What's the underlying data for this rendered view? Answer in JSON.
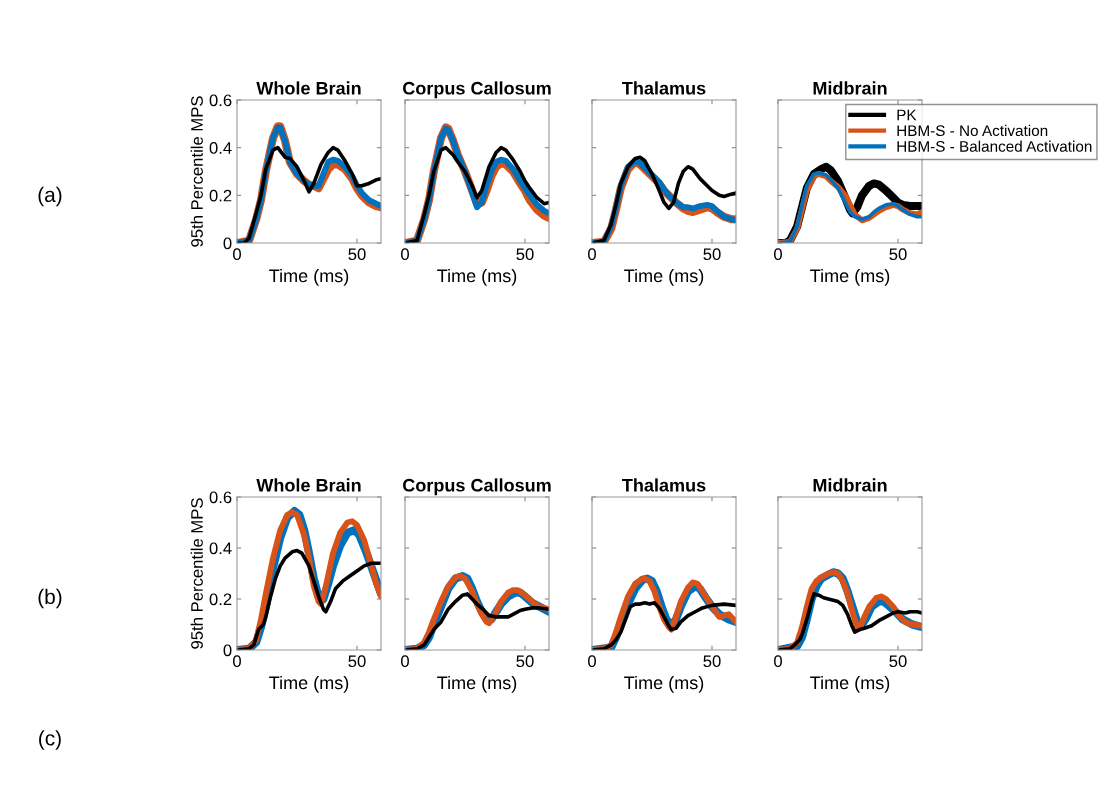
{
  "chart_data": [
    {
      "type": "line",
      "title": "Whole Brain",
      "xlabel": "Time (ms)",
      "ylabel": "95th Percentile MPS",
      "annotations": [
        "(a)"
      ],
      "xlim": [
        0,
        60
      ],
      "xticks": [
        0,
        50
      ],
      "ylim": [
        0,
        0.6
      ],
      "yticks": [
        0,
        0.2,
        0.4,
        0.6
      ],
      "grid": false,
      "legend": false,
      "marker": "none",
      "line_style": "solid",
      "series": [
        {
          "color": "#d95319",
          "x": [
            0,
            5,
            8,
            10,
            12,
            15,
            17,
            18,
            20,
            22,
            25,
            28,
            30,
            32,
            34,
            36,
            38,
            40,
            42,
            45,
            48,
            50,
            52,
            55,
            58,
            60
          ],
          "values": [
            0,
            0.01,
            0.1,
            0.18,
            0.3,
            0.44,
            0.49,
            0.49,
            0.43,
            0.34,
            0.29,
            0.26,
            0.245,
            0.24,
            0.23,
            0.27,
            0.31,
            0.33,
            0.33,
            0.31,
            0.27,
            0.23,
            0.2,
            0.17,
            0.155,
            0.15
          ]
        },
        {
          "color": "#0072bd",
          "x": [
            0,
            5,
            8,
            10,
            12,
            15,
            17,
            18,
            20,
            22,
            25,
            28,
            30,
            32,
            34,
            36,
            38,
            40,
            42,
            45,
            48,
            50,
            52,
            55,
            58,
            60
          ],
          "values": [
            0,
            0.01,
            0.1,
            0.18,
            0.3,
            0.44,
            0.485,
            0.485,
            0.43,
            0.34,
            0.29,
            0.26,
            0.245,
            0.24,
            0.24,
            0.29,
            0.34,
            0.35,
            0.345,
            0.32,
            0.28,
            0.24,
            0.21,
            0.18,
            0.165,
            0.155
          ]
        },
        {
          "color": "#000000",
          "x": [
            0,
            3,
            5,
            8,
            10,
            12,
            15,
            17,
            20,
            22,
            25,
            28,
            30,
            32,
            35,
            38,
            40,
            42,
            45,
            48,
            50,
            52,
            55,
            58,
            60
          ],
          "values": [
            0,
            0,
            0.02,
            0.126,
            0.2,
            0.31,
            0.39,
            0.4,
            0.36,
            0.355,
            0.32,
            0.26,
            0.215,
            0.25,
            0.33,
            0.38,
            0.4,
            0.39,
            0.345,
            0.29,
            0.24,
            0.24,
            0.25,
            0.265,
            0.27
          ]
        }
      ]
    },
    {
      "type": "line",
      "title": "Corpus Callosum",
      "xlabel": "Time (ms)",
      "tick_labels": "x",
      "xlim": [
        0,
        60
      ],
      "xticks": [
        0,
        50
      ],
      "ylim": [
        0,
        0.6
      ],
      "yticks": [
        0,
        0.2,
        0.4,
        0.6
      ],
      "grid": false,
      "legend": false,
      "marker": "none",
      "line_style": "solid",
      "series": [
        {
          "color": "#d95319",
          "x": [
            0,
            5,
            8,
            10,
            12,
            15,
            17,
            18,
            20,
            22,
            25,
            28,
            30,
            32,
            34,
            36,
            38,
            40,
            42,
            45,
            48,
            50,
            52,
            55,
            58,
            60
          ],
          "values": [
            0,
            0.01,
            0.1,
            0.18,
            0.3,
            0.44,
            0.485,
            0.48,
            0.43,
            0.37,
            0.3,
            0.22,
            0.165,
            0.17,
            0.22,
            0.28,
            0.32,
            0.335,
            0.33,
            0.3,
            0.25,
            0.22,
            0.18,
            0.14,
            0.115,
            0.105
          ]
        },
        {
          "color": "#0072bd",
          "x": [
            0,
            5,
            8,
            10,
            12,
            15,
            17,
            18,
            20,
            22,
            25,
            28,
            30,
            32,
            34,
            36,
            38,
            40,
            42,
            45,
            48,
            50,
            52,
            55,
            58,
            60
          ],
          "values": [
            0,
            0.01,
            0.1,
            0.18,
            0.3,
            0.44,
            0.48,
            0.475,
            0.43,
            0.37,
            0.3,
            0.21,
            0.15,
            0.17,
            0.24,
            0.3,
            0.34,
            0.35,
            0.345,
            0.31,
            0.26,
            0.23,
            0.2,
            0.16,
            0.135,
            0.125
          ]
        },
        {
          "color": "#000000",
          "x": [
            0,
            5,
            8,
            10,
            12,
            15,
            17,
            20,
            22,
            25,
            28,
            30,
            32,
            35,
            38,
            40,
            42,
            45,
            48,
            50,
            52,
            55,
            58,
            60
          ],
          "values": [
            0,
            0.01,
            0.12,
            0.2,
            0.3,
            0.39,
            0.4,
            0.37,
            0.34,
            0.3,
            0.24,
            0.19,
            0.22,
            0.32,
            0.38,
            0.4,
            0.39,
            0.35,
            0.3,
            0.26,
            0.23,
            0.19,
            0.165,
            0.17
          ]
        }
      ]
    },
    {
      "type": "line",
      "title": "Thalamus",
      "xlabel": "Time (ms)",
      "tick_labels": "x",
      "xlim": [
        0,
        60
      ],
      "xticks": [
        0,
        50
      ],
      "ylim": [
        0,
        0.6
      ],
      "yticks": [
        0,
        0.2,
        0.4,
        0.6
      ],
      "grid": false,
      "legend": false,
      "marker": "none",
      "line_style": "solid",
      "series": [
        {
          "color": "#d95319",
          "x": [
            0,
            5,
            8,
            10,
            12,
            15,
            18,
            20,
            22,
            25,
            28,
            30,
            32,
            35,
            38,
            40,
            42,
            45,
            48,
            50,
            52,
            55,
            58,
            60
          ],
          "values": [
            0,
            0.005,
            0.06,
            0.14,
            0.23,
            0.31,
            0.34,
            0.33,
            0.31,
            0.28,
            0.25,
            0.22,
            0.2,
            0.17,
            0.145,
            0.135,
            0.13,
            0.14,
            0.15,
            0.145,
            0.13,
            0.11,
            0.1,
            0.1
          ]
        },
        {
          "color": "#0072bd",
          "x": [
            0,
            5,
            8,
            10,
            12,
            15,
            18,
            20,
            22,
            25,
            28,
            30,
            32,
            35,
            38,
            40,
            42,
            45,
            48,
            50,
            52,
            55,
            58,
            60
          ],
          "values": [
            0,
            0.005,
            0.07,
            0.15,
            0.24,
            0.32,
            0.345,
            0.335,
            0.315,
            0.285,
            0.255,
            0.225,
            0.2,
            0.17,
            0.15,
            0.15,
            0.145,
            0.155,
            0.16,
            0.155,
            0.135,
            0.11,
            0.1,
            0.095
          ]
        },
        {
          "color": "#000000",
          "x": [
            0,
            5,
            8,
            10,
            12,
            15,
            18,
            20,
            22,
            25,
            28,
            30,
            32,
            34,
            36,
            38,
            40,
            42,
            45,
            48,
            50,
            53,
            55,
            58,
            60
          ],
          "values": [
            0,
            0.01,
            0.08,
            0.16,
            0.25,
            0.32,
            0.355,
            0.36,
            0.345,
            0.29,
            0.22,
            0.17,
            0.145,
            0.17,
            0.25,
            0.3,
            0.32,
            0.31,
            0.27,
            0.24,
            0.22,
            0.2,
            0.195,
            0.205,
            0.21
          ]
        }
      ]
    },
    {
      "type": "line",
      "title": "Midbrain",
      "xlabel": "Time (ms)",
      "tick_labels": "x",
      "xlim": [
        0,
        60
      ],
      "xticks": [
        0,
        50
      ],
      "ylim": [
        0,
        0.6
      ],
      "yticks": [
        0,
        0.2,
        0.4,
        0.6
      ],
      "grid": false,
      "legend": "top right",
      "marker": "none",
      "line_style": "solid",
      "series": [
        {
          "name": "PK",
          "color": "#000000",
          "x": [
            0,
            3,
            5,
            8,
            10,
            12,
            15,
            18,
            20,
            22,
            25,
            28,
            30,
            31,
            33,
            35,
            38,
            40,
            42,
            45,
            48,
            50,
            52,
            55,
            60
          ],
          "values": [
            0,
            0,
            0.01,
            0.07,
            0.15,
            0.23,
            0.29,
            0.31,
            0.32,
            0.305,
            0.26,
            0.19,
            0.14,
            0.125,
            0.15,
            0.2,
            0.24,
            0.25,
            0.245,
            0.22,
            0.19,
            0.17,
            0.16,
            0.155,
            0.155
          ]
        },
        {
          "name": "HBM-S - No Activation",
          "color": "#d95319",
          "x": [
            0,
            5,
            8,
            10,
            12,
            15,
            17,
            20,
            22,
            25,
            28,
            30,
            32,
            35,
            38,
            40,
            42,
            45,
            48,
            50,
            52,
            55,
            58,
            60
          ],
          "values": [
            0,
            0.005,
            0.06,
            0.14,
            0.22,
            0.28,
            0.29,
            0.28,
            0.26,
            0.235,
            0.2,
            0.16,
            0.12,
            0.095,
            0.105,
            0.12,
            0.135,
            0.15,
            0.16,
            0.155,
            0.14,
            0.125,
            0.12,
            0.13
          ]
        },
        {
          "name": "HBM-S - Balanced Activation",
          "color": "#0072bd",
          "x": [
            0,
            5,
            8,
            10,
            12,
            15,
            17,
            20,
            22,
            25,
            28,
            30,
            32,
            35,
            38,
            40,
            42,
            45,
            48,
            50,
            52,
            55,
            58,
            60
          ],
          "values": [
            0,
            0.005,
            0.07,
            0.16,
            0.24,
            0.29,
            0.295,
            0.285,
            0.265,
            0.23,
            0.17,
            0.13,
            0.11,
            0.1,
            0.11,
            0.13,
            0.145,
            0.16,
            0.165,
            0.155,
            0.14,
            0.12,
            0.11,
            0.11
          ]
        }
      ]
    },
    {
      "type": "line",
      "title": "Whole Brain",
      "xlabel": "Time (ms)",
      "ylabel": "95th Percentile MPS",
      "annotations": [
        "(b)",
        "(c)"
      ],
      "xlim": [
        0,
        60
      ],
      "xticks": [
        0,
        50
      ],
      "ylim": [
        0,
        0.6
      ],
      "yticks": [
        0,
        0.2,
        0.4,
        0.6
      ],
      "grid": false,
      "legend": false,
      "marker": "none",
      "line_style": "solid",
      "series": [
        {
          "color": "#0072bd",
          "x": [
            0,
            5,
            8,
            10,
            12,
            15,
            18,
            21,
            24,
            26,
            28,
            30,
            32,
            34,
            36,
            38,
            40,
            43,
            46,
            49,
            51,
            54,
            57,
            60
          ],
          "values": [
            0,
            0.005,
            0.03,
            0.09,
            0.17,
            0.32,
            0.44,
            0.52,
            0.545,
            0.53,
            0.47,
            0.38,
            0.28,
            0.21,
            0.2,
            0.26,
            0.33,
            0.41,
            0.46,
            0.47,
            0.45,
            0.38,
            0.3,
            0.22
          ]
        },
        {
          "color": "#d95319",
          "x": [
            0,
            5,
            8,
            10,
            12,
            15,
            18,
            21,
            23,
            25,
            28,
            30,
            32,
            34,
            35,
            37,
            40,
            43,
            46,
            48,
            50,
            53,
            56,
            58,
            60
          ],
          "values": [
            0,
            0.005,
            0.04,
            0.12,
            0.22,
            0.36,
            0.47,
            0.53,
            0.54,
            0.53,
            0.45,
            0.36,
            0.25,
            0.19,
            0.18,
            0.25,
            0.38,
            0.46,
            0.5,
            0.505,
            0.49,
            0.43,
            0.33,
            0.26,
            0.21
          ]
        },
        {
          "color": "#000000",
          "x": [
            0,
            5,
            7,
            9,
            11,
            12,
            14,
            16,
            18,
            20,
            23,
            25,
            27,
            30,
            32,
            34,
            36,
            37,
            39,
            41,
            44,
            47,
            50,
            53,
            56,
            58,
            60
          ],
          "values": [
            0,
            0.005,
            0.02,
            0.08,
            0.1,
            0.13,
            0.21,
            0.28,
            0.33,
            0.36,
            0.385,
            0.39,
            0.38,
            0.33,
            0.27,
            0.21,
            0.16,
            0.15,
            0.19,
            0.24,
            0.27,
            0.29,
            0.31,
            0.33,
            0.34,
            0.34,
            0.34
          ]
        }
      ]
    },
    {
      "type": "line",
      "title": "Corpus Callosum",
      "xlabel": "Time (ms)",
      "tick_labels": "x",
      "xlim": [
        0,
        60
      ],
      "xticks": [
        0,
        50
      ],
      "ylim": [
        0,
        0.6
      ],
      "yticks": [
        0,
        0.2,
        0.4,
        0.6
      ],
      "grid": false,
      "legend": false,
      "marker": "none",
      "line_style": "solid",
      "series": [
        {
          "color": "#0072bd",
          "x": [
            0,
            5,
            8,
            10,
            12,
            15,
            18,
            21,
            24,
            26,
            28,
            30,
            32,
            34,
            36,
            38,
            40,
            43,
            46,
            48,
            50,
            53,
            56,
            60
          ],
          "values": [
            0,
            0.005,
            0.02,
            0.05,
            0.1,
            0.17,
            0.24,
            0.28,
            0.29,
            0.28,
            0.24,
            0.19,
            0.15,
            0.12,
            0.12,
            0.15,
            0.18,
            0.21,
            0.225,
            0.225,
            0.21,
            0.185,
            0.17,
            0.15
          ]
        },
        {
          "color": "#d95319",
          "x": [
            0,
            5,
            8,
            10,
            12,
            15,
            18,
            21,
            23,
            25,
            28,
            30,
            32,
            34,
            35,
            37,
            40,
            43,
            45,
            47,
            50,
            53,
            56,
            60
          ],
          "values": [
            0,
            0.005,
            0.03,
            0.07,
            0.12,
            0.19,
            0.25,
            0.285,
            0.29,
            0.28,
            0.23,
            0.18,
            0.14,
            0.11,
            0.105,
            0.13,
            0.19,
            0.225,
            0.235,
            0.235,
            0.215,
            0.19,
            0.17,
            0.16
          ]
        },
        {
          "color": "#000000",
          "x": [
            0,
            5,
            8,
            10,
            12,
            15,
            18,
            21,
            24,
            26,
            28,
            30,
            33,
            35,
            38,
            40,
            43,
            45,
            48,
            50,
            53,
            56,
            60
          ],
          "values": [
            0,
            0.005,
            0.02,
            0.05,
            0.08,
            0.11,
            0.16,
            0.19,
            0.215,
            0.22,
            0.2,
            0.18,
            0.155,
            0.135,
            0.13,
            0.13,
            0.13,
            0.14,
            0.155,
            0.16,
            0.165,
            0.165,
            0.16
          ]
        }
      ]
    },
    {
      "type": "line",
      "title": "Thalamus",
      "xlabel": "Time (ms)",
      "tick_labels": "x",
      "xlim": [
        0,
        60
      ],
      "xticks": [
        0,
        50
      ],
      "ylim": [
        0,
        0.6
      ],
      "yticks": [
        0,
        0.2,
        0.4,
        0.6
      ],
      "grid": false,
      "legend": false,
      "marker": "none",
      "line_style": "solid",
      "series": [
        {
          "color": "#0072bd",
          "x": [
            0,
            8,
            10,
            12,
            15,
            18,
            21,
            23,
            25,
            27,
            29,
            31,
            33,
            35,
            37,
            40,
            43,
            45,
            47,
            50,
            53,
            57,
            60
          ],
          "values": [
            0,
            0.01,
            0.05,
            0.1,
            0.18,
            0.24,
            0.275,
            0.28,
            0.27,
            0.23,
            0.17,
            0.12,
            0.095,
            0.12,
            0.17,
            0.23,
            0.25,
            0.24,
            0.21,
            0.17,
            0.14,
            0.12,
            0.11
          ]
        },
        {
          "color": "#d95319",
          "x": [
            0,
            5,
            8,
            10,
            12,
            15,
            18,
            21,
            22,
            24,
            26,
            28,
            30,
            32,
            33,
            35,
            37,
            40,
            42,
            44,
            46,
            48,
            50,
            53,
            57,
            60
          ],
          "values": [
            0,
            0.005,
            0.02,
            0.07,
            0.13,
            0.21,
            0.26,
            0.28,
            0.28,
            0.27,
            0.23,
            0.17,
            0.12,
            0.09,
            0.08,
            0.13,
            0.19,
            0.245,
            0.265,
            0.26,
            0.23,
            0.2,
            0.17,
            0.13,
            0.14,
            0.11
          ]
        },
        {
          "color": "#000000",
          "x": [
            0,
            5,
            8,
            10,
            12,
            14,
            16,
            18,
            20,
            22,
            24,
            26,
            28,
            30,
            32,
            33,
            35,
            37,
            40,
            43,
            46,
            50,
            55,
            60
          ],
          "values": [
            0,
            0.005,
            0.02,
            0.04,
            0.07,
            0.12,
            0.17,
            0.18,
            0.18,
            0.185,
            0.18,
            0.185,
            0.165,
            0.13,
            0.095,
            0.08,
            0.085,
            0.11,
            0.135,
            0.15,
            0.165,
            0.175,
            0.18,
            0.175
          ]
        }
      ]
    },
    {
      "type": "line",
      "title": "Midbrain",
      "xlabel": "Time (ms)",
      "tick_labels": "x",
      "xlim": [
        0,
        60
      ],
      "xticks": [
        0,
        50
      ],
      "ylim": [
        0,
        0.6
      ],
      "yticks": [
        0,
        0.2,
        0.4,
        0.6
      ],
      "grid": false,
      "legend": false,
      "marker": "none",
      "line_style": "solid",
      "series": [
        {
          "color": "#0072bd",
          "x": [
            0,
            8,
            10,
            12,
            14,
            16,
            18,
            21,
            23,
            25,
            27,
            29,
            31,
            33,
            35,
            37,
            39,
            42,
            44,
            46,
            49,
            52,
            56,
            60
          ],
          "values": [
            0,
            0.015,
            0.05,
            0.12,
            0.2,
            0.25,
            0.28,
            0.295,
            0.305,
            0.3,
            0.28,
            0.23,
            0.17,
            0.11,
            0.1,
            0.13,
            0.17,
            0.19,
            0.19,
            0.175,
            0.15,
            0.12,
            0.1,
            0.09
          ]
        },
        {
          "color": "#d95319",
          "x": [
            0,
            5,
            8,
            10,
            12,
            14,
            16,
            18,
            21,
            23,
            25,
            27,
            29,
            31,
            33,
            34,
            36,
            38,
            41,
            43,
            45,
            48,
            50,
            53,
            56,
            60
          ],
          "values": [
            0,
            0.005,
            0.03,
            0.09,
            0.17,
            0.24,
            0.27,
            0.285,
            0.3,
            0.305,
            0.3,
            0.27,
            0.22,
            0.15,
            0.09,
            0.085,
            0.13,
            0.17,
            0.205,
            0.21,
            0.2,
            0.17,
            0.14,
            0.11,
            0.1,
            0.095
          ]
        },
        {
          "color": "#000000",
          "x": [
            0,
            5,
            7,
            9,
            10,
            12,
            14,
            15,
            17,
            19,
            21,
            23,
            25,
            27,
            29,
            31,
            32,
            34,
            36,
            39,
            42,
            45,
            48,
            50,
            53,
            55,
            58,
            60
          ],
          "values": [
            0,
            0.005,
            0.02,
            0.04,
            0.06,
            0.12,
            0.19,
            0.22,
            0.215,
            0.205,
            0.2,
            0.195,
            0.19,
            0.175,
            0.14,
            0.09,
            0.07,
            0.08,
            0.085,
            0.095,
            0.115,
            0.13,
            0.145,
            0.15,
            0.145,
            0.15,
            0.15,
            0.145
          ]
        }
      ]
    }
  ]
}
